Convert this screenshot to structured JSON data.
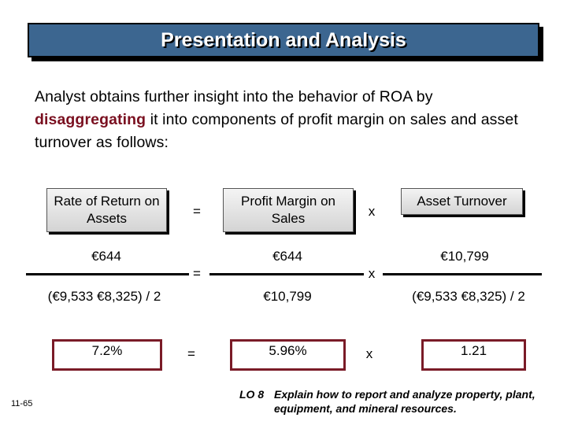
{
  "title": "Presentation and Analysis",
  "intro": {
    "before": "Analyst obtains further insight into the behavior of ROA by ",
    "emphasis": "disaggregating",
    "after": " it into components of profit margin on sales and asset turnover as follows:"
  },
  "headers": {
    "roa": "Rate of Return on Assets",
    "profit_margin": "Profit Margin on Sales",
    "asset_turnover": "Asset Turnover"
  },
  "operators": {
    "equals": "=",
    "times": "x"
  },
  "row_numerators": {
    "roa": "€644",
    "profit_margin": "€644",
    "asset_turnover": "€10,799"
  },
  "row_denominators": {
    "roa": "(€9,533  €8,325) / 2",
    "profit_margin": "€10,799",
    "asset_turnover": "(€9,533  €8,325) / 2"
  },
  "results": {
    "roa": "7.2%",
    "profit_margin": "5.96%",
    "asset_turnover": "1.21"
  },
  "footer": {
    "slide_number": "11-65",
    "lo_label": "LO 8",
    "lo_text": "Explain how to report and analyze property, plant, equipment, and mineral resources."
  },
  "colors": {
    "title_bar": "#3c6690",
    "emphasis": "#7a1020",
    "result_border": "#7a1b27"
  }
}
